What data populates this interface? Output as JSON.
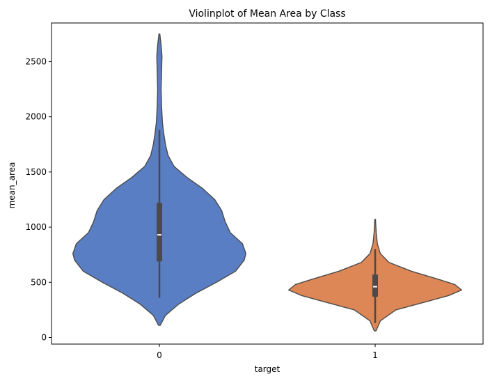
{
  "chart_data": {
    "type": "violin",
    "title": "Violinplot of Mean Area by Class",
    "xlabel": "target",
    "ylabel": "mean_area",
    "ylim": [
      -60,
      2850
    ],
    "yticks": [
      0,
      500,
      1000,
      1500,
      2000,
      2500
    ],
    "categories": [
      "0",
      "1"
    ],
    "grid": false,
    "colors": {
      "0": "#5a7ec3",
      "1": "#dd8756"
    },
    "edge_color": "#4a4a4a",
    "violins": [
      {
        "category": "0",
        "min": 110,
        "max": 2750,
        "whisker_low": 360,
        "whisker_high": 1880,
        "q1": 690,
        "median": 930,
        "q3": 1220,
        "density": [
          [
            110,
            0.01
          ],
          [
            200,
            0.07
          ],
          [
            300,
            0.22
          ],
          [
            400,
            0.42
          ],
          [
            500,
            0.66
          ],
          [
            600,
            0.88
          ],
          [
            700,
            0.98
          ],
          [
            760,
            1.0
          ],
          [
            850,
            0.96
          ],
          [
            950,
            0.82
          ],
          [
            1050,
            0.76
          ],
          [
            1150,
            0.72
          ],
          [
            1250,
            0.64
          ],
          [
            1350,
            0.5
          ],
          [
            1450,
            0.32
          ],
          [
            1550,
            0.17
          ],
          [
            1650,
            0.1
          ],
          [
            1750,
            0.07
          ],
          [
            1850,
            0.05
          ],
          [
            1950,
            0.035
          ],
          [
            2100,
            0.025
          ],
          [
            2250,
            0.02
          ],
          [
            2400,
            0.025
          ],
          [
            2550,
            0.03
          ],
          [
            2650,
            0.02
          ],
          [
            2750,
            0.005
          ]
        ]
      },
      {
        "category": "1",
        "min": 60,
        "max": 1070,
        "whisker_low": 130,
        "whisker_high": 800,
        "q1": 370,
        "median": 460,
        "q3": 570,
        "density": [
          [
            60,
            0.01
          ],
          [
            150,
            0.06
          ],
          [
            250,
            0.24
          ],
          [
            330,
            0.62
          ],
          [
            380,
            0.85
          ],
          [
            430,
            1.0
          ],
          [
            480,
            0.92
          ],
          [
            530,
            0.72
          ],
          [
            600,
            0.42
          ],
          [
            680,
            0.16
          ],
          [
            760,
            0.06
          ],
          [
            850,
            0.025
          ],
          [
            950,
            0.012
          ],
          [
            1070,
            0.004
          ]
        ]
      }
    ]
  }
}
